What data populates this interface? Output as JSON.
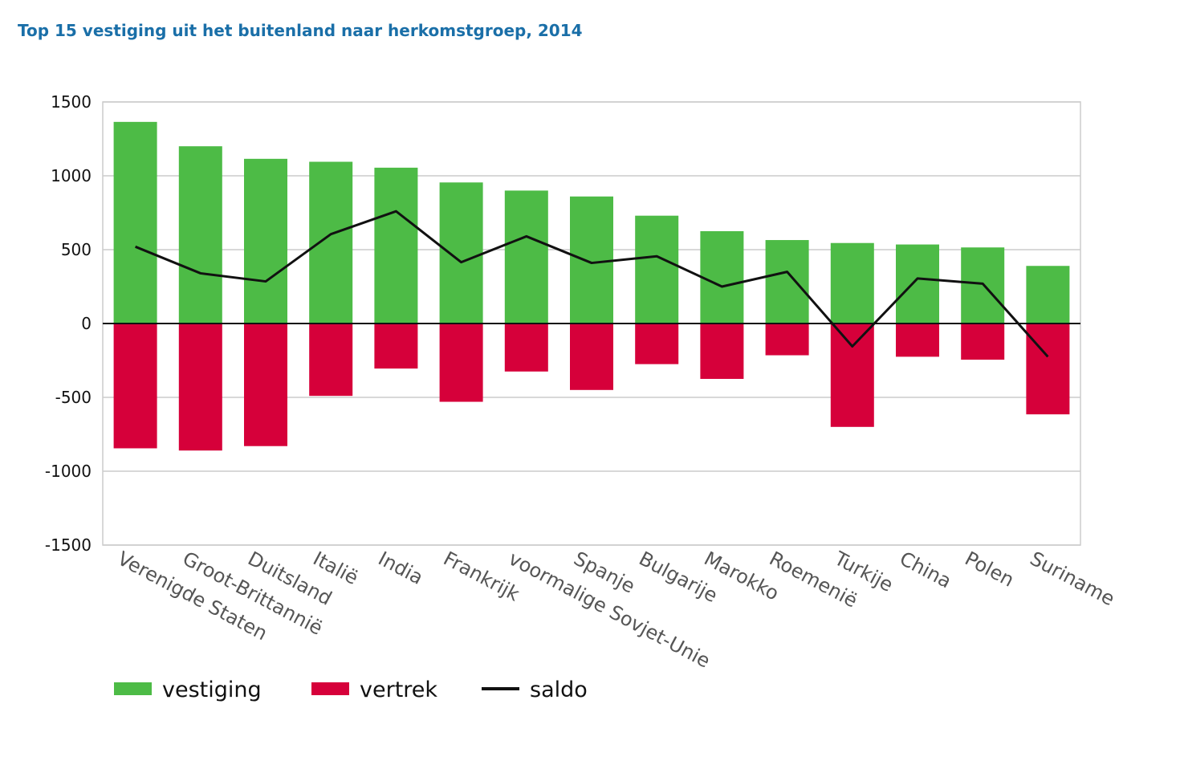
{
  "title": "Top 15 vestiging uit het buitenland naar herkomstgroep, 2014",
  "colors": {
    "vestiging": "#4dbb46",
    "vertrek": "#d6003a",
    "saldo": "#111111",
    "grid": "#cccccc"
  },
  "chart_data": {
    "type": "bar",
    "title": "Top 15 vestiging uit het buitenland naar herkomstgroep, 2014",
    "xlabel": "",
    "ylabel": "",
    "ylim": [
      -1500,
      1500
    ],
    "yticks": [
      1500,
      1000,
      500,
      0,
      -500,
      -1000,
      -1500
    ],
    "ytick_labels": [
      "1500",
      "1000",
      "500",
      "0",
      "-500",
      "-1000",
      "-1500"
    ],
    "grid": true,
    "legend_position": "bottom",
    "categories": [
      "Verenigde Staten",
      "Groot-Brittannië",
      "Duitsland",
      "Italië",
      "India",
      "Frankrijk",
      "voormalige Sovjet-Unie",
      "Spanje",
      "Bulgarije",
      "Marokko",
      "Roemenië",
      "Turkije",
      "China",
      "Polen",
      "Suriname"
    ],
    "series": [
      {
        "name": "vestiging",
        "kind": "bar",
        "values": [
          1365,
          1200,
          1115,
          1095,
          1055,
          955,
          900,
          860,
          730,
          625,
          565,
          545,
          535,
          515,
          390
        ]
      },
      {
        "name": "vertrek",
        "kind": "bar",
        "values": [
          -845,
          -860,
          -830,
          -490,
          -305,
          -530,
          -325,
          -450,
          -275,
          -375,
          -215,
          -700,
          -225,
          -245,
          -615
        ]
      },
      {
        "name": "saldo",
        "kind": "line",
        "values": [
          520,
          340,
          285,
          605,
          760,
          415,
          590,
          410,
          455,
          250,
          350,
          -155,
          305,
          270,
          -225
        ]
      }
    ]
  }
}
